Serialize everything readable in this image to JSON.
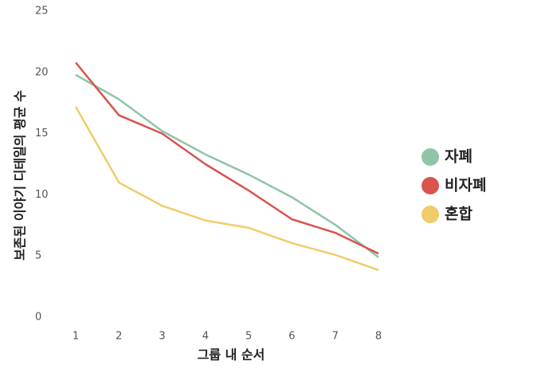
{
  "chart_data": {
    "type": "line",
    "x_label": "그룹 내 순서",
    "y_label": "보존된 이야기 디테일의 평균 수",
    "x": [
      1,
      2,
      3,
      4,
      5,
      6,
      7,
      8
    ],
    "xlim": [
      1,
      8
    ],
    "xticks": [
      1,
      2,
      3,
      4,
      5,
      6,
      7,
      8
    ],
    "ylim": [
      0,
      25
    ],
    "yticks": [
      0,
      5,
      10,
      15,
      20,
      25
    ],
    "grid": false,
    "legend": "right",
    "series": [
      {
        "name": "자폐",
        "color": "#8fc4a8",
        "values": [
          19.8,
          17.8,
          15.2,
          13.3,
          11.65,
          9.8,
          7.55,
          4.9
        ]
      },
      {
        "name": "비자폐",
        "color": "#d9534f",
        "values": [
          20.8,
          16.5,
          15.0,
          12.5,
          10.35,
          8.0,
          6.9,
          5.2
        ]
      },
      {
        "name": "혼합",
        "color": "#f0cc6a",
        "values": [
          17.2,
          11.0,
          9.1,
          7.9,
          7.3,
          6.05,
          5.1,
          3.85
        ]
      }
    ]
  }
}
